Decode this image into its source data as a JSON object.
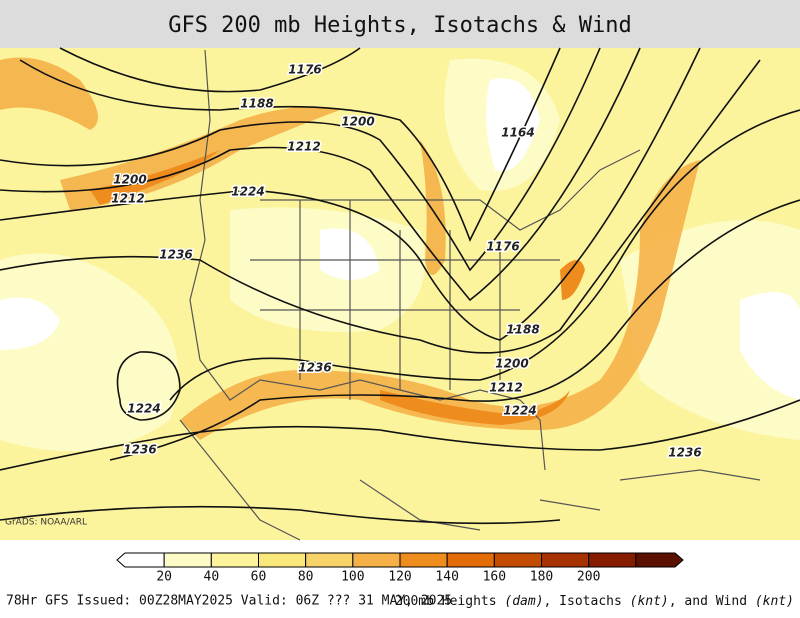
{
  "header": {
    "title": "GFS 200 mb Heights, Isotachs & Wind"
  },
  "contour_labels": [
    "1176",
    "1188",
    "1200",
    "1164",
    "1212",
    "1200",
    "1212",
    "1224",
    "1236",
    "1176",
    "1188",
    "1200",
    "1236",
    "1212",
    "1224",
    "1224",
    "1236",
    "1236"
  ],
  "credit": "GrADS: NOAA/ARL",
  "colorbar": {
    "ticks": [
      20,
      40,
      60,
      80,
      100,
      120,
      140,
      160,
      180,
      200
    ],
    "colors": [
      "#ffffff",
      "#fdfbc6",
      "#fcf49c",
      "#fbe87c",
      "#f8d36a",
      "#f5b148",
      "#ef8c1e",
      "#e26c08",
      "#c44c00",
      "#a53200",
      "#861c00",
      "#5c1000"
    ]
  },
  "footer": {
    "left": "78Hr GFS Issued: 00Z28MAY2025 Valid: 06Z ??? 31 MAY, 2025",
    "right": [
      "200mb Heights ",
      "(dam)",
      ", Isotachs ",
      "(knt)",
      ", and Wind ",
      "(knt)"
    ]
  }
}
